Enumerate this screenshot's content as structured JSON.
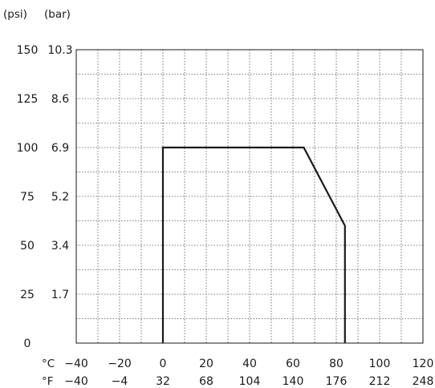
{
  "chart_data": {
    "type": "line",
    "title": "",
    "units": {
      "psi": "(psi)",
      "bar": "(bar)",
      "celsius": "°C",
      "fahrenheit": "°F"
    },
    "y_ticks_psi": [
      "0",
      "25",
      "50",
      "75",
      "100",
      "125",
      "150"
    ],
    "y_ticks_bar": [
      "1.7",
      "3.4",
      "5.2",
      "6.9",
      "8.6",
      "10.3"
    ],
    "x_ticks_celsius": [
      "−40",
      "−20",
      "0",
      "20",
      "40",
      "60",
      "80",
      "100",
      "120"
    ],
    "x_ticks_fahrenheit": [
      "−40",
      "−4",
      "32",
      "68",
      "104",
      "140",
      "176",
      "212",
      "248"
    ],
    "xlim_celsius": [
      -40,
      120
    ],
    "ylim_psi": [
      0,
      150
    ],
    "grid": true,
    "grid_step": {
      "x_celsius": 10,
      "y_psi": 12.5
    },
    "series": [
      {
        "x": [
          0,
          0,
          65,
          84,
          84
        ],
        "y": [
          0,
          100,
          100,
          60,
          0
        ]
      }
    ]
  }
}
